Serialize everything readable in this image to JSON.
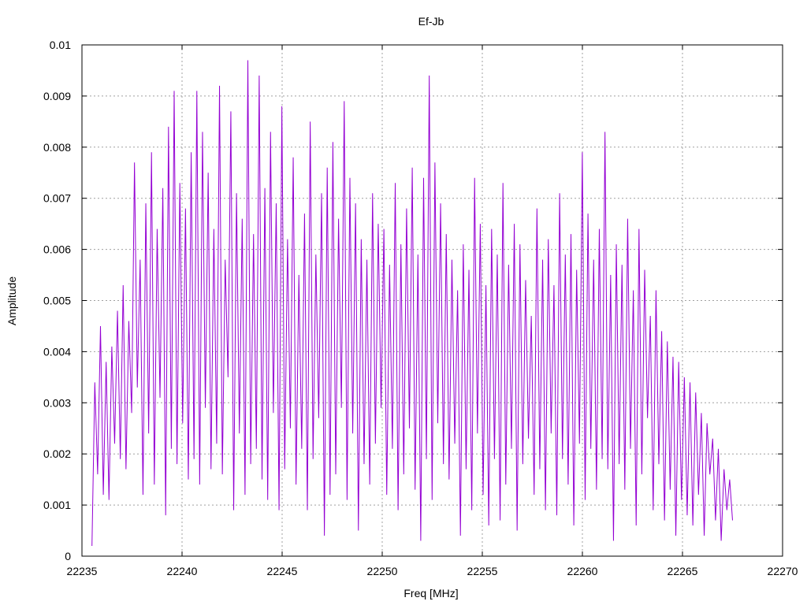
{
  "chart_data": {
    "type": "line",
    "title": "Ef-Jb",
    "xlabel": "Freq [MHz]",
    "ylabel": "Amplitude",
    "xlim": [
      22235,
      22270
    ],
    "ylim": [
      0,
      0.01
    ],
    "xticks": [
      "22235",
      "22240",
      "22245",
      "22250",
      "22255",
      "22260",
      "22265",
      "22270"
    ],
    "yticks": [
      "0",
      "0.001",
      "0.002",
      "0.003",
      "0.004",
      "0.005",
      "0.006",
      "0.007",
      "0.008",
      "0.009",
      "0.01"
    ],
    "grid": true,
    "series_color": "#9400d3",
    "series": [
      {
        "x_start": 22235.5,
        "x_end": 22267.5,
        "values": [
          0.0002,
          0.0034,
          0.0016,
          0.0045,
          0.0012,
          0.0038,
          0.0011,
          0.0041,
          0.0022,
          0.0048,
          0.0019,
          0.0053,
          0.0017,
          0.0046,
          0.0028,
          0.0077,
          0.0033,
          0.0058,
          0.0012,
          0.0069,
          0.0024,
          0.0079,
          0.0014,
          0.0064,
          0.0031,
          0.0072,
          0.0008,
          0.0084,
          0.0021,
          0.0091,
          0.0018,
          0.0073,
          0.0026,
          0.0068,
          0.0015,
          0.0079,
          0.0019,
          0.0091,
          0.0014,
          0.0083,
          0.0029,
          0.0075,
          0.0017,
          0.0064,
          0.0022,
          0.0092,
          0.0016,
          0.0058,
          0.0035,
          0.0087,
          0.0009,
          0.0071,
          0.0024,
          0.0066,
          0.0012,
          0.0097,
          0.0018,
          0.0063,
          0.0021,
          0.0094,
          0.0015,
          0.0072,
          0.0011,
          0.0083,
          0.0028,
          0.0069,
          0.0009,
          0.0088,
          0.0017,
          0.0062,
          0.0025,
          0.0078,
          0.0014,
          0.0055,
          0.0021,
          0.0067,
          0.0009,
          0.0085,
          0.0019,
          0.0059,
          0.0027,
          0.0071,
          0.0004,
          0.0076,
          0.0012,
          0.0081,
          0.0016,
          0.0066,
          0.0029,
          0.0089,
          0.0011,
          0.0074,
          0.0024,
          0.0069,
          0.0005,
          0.0062,
          0.0018,
          0.0058,
          0.0014,
          0.0071,
          0.0022,
          0.0065,
          0.0029,
          0.0064,
          0.0012,
          0.0057,
          0.0021,
          0.0073,
          0.0009,
          0.0061,
          0.0016,
          0.0068,
          0.0025,
          0.0076,
          0.0013,
          0.0059,
          0.0003,
          0.0074,
          0.0019,
          0.0094,
          0.0011,
          0.0077,
          0.0026,
          0.0069,
          0.0018,
          0.0063,
          0.0015,
          0.0058,
          0.0022,
          0.0052,
          0.0004,
          0.0061,
          0.0017,
          0.0056,
          0.0009,
          0.0074,
          0.0024,
          0.0065,
          0.0012,
          0.0053,
          0.0006,
          0.0064,
          0.0019,
          0.0059,
          0.0007,
          0.0073,
          0.0014,
          0.0057,
          0.0021,
          0.0065,
          0.0005,
          0.0061,
          0.0018,
          0.0054,
          0.0023,
          0.0047,
          0.0012,
          0.0068,
          0.0017,
          0.0058,
          0.0009,
          0.0062,
          0.0024,
          0.0053,
          0.0008,
          0.0071,
          0.0019,
          0.0059,
          0.0014,
          0.0063,
          0.0006,
          0.0056,
          0.0022,
          0.0079,
          0.0011,
          0.0067,
          0.0021,
          0.0058,
          0.0013,
          0.0064,
          0.0019,
          0.0083,
          0.0017,
          0.0055,
          0.0003,
          0.0061,
          0.0018,
          0.0057,
          0.0013,
          0.0066,
          0.0021,
          0.0052,
          0.0006,
          0.0064,
          0.0016,
          0.0056,
          0.0027,
          0.0047,
          0.0009,
          0.0052,
          0.0018,
          0.0044,
          0.0007,
          0.0042,
          0.0013,
          0.0039,
          0.0004,
          0.0038,
          0.0011,
          0.0035,
          0.0008,
          0.0034,
          0.0006,
          0.0032,
          0.0012,
          0.0028,
          0.0004,
          0.0026,
          0.0016,
          0.0023,
          0.0007,
          0.0021,
          0.0003,
          0.0017,
          0.0009,
          0.0015,
          0.0007
        ]
      }
    ]
  }
}
